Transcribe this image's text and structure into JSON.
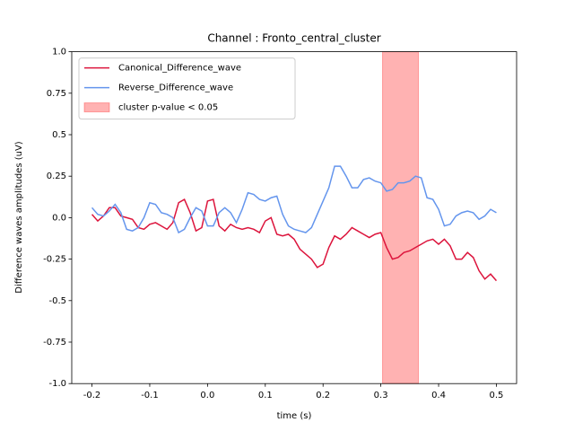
{
  "chart_data": {
    "type": "line",
    "title": "Channel : Fronto_central_cluster",
    "x_label": "time (s)",
    "y_label": "Difference waves amplitudes (uV)",
    "x": [
      -0.2,
      -0.19,
      -0.18,
      -0.17,
      -0.16,
      -0.15,
      -0.14,
      -0.13,
      -0.12,
      -0.11,
      -0.1,
      -0.09,
      -0.08,
      -0.07,
      -0.06,
      -0.05,
      -0.04,
      -0.03,
      -0.02,
      -0.01,
      0.0,
      0.01,
      0.02,
      0.03,
      0.04,
      0.05,
      0.06,
      0.07,
      0.08,
      0.09,
      0.1,
      0.11,
      0.12,
      0.13,
      0.14,
      0.15,
      0.16,
      0.17,
      0.18,
      0.19,
      0.2,
      0.21,
      0.22,
      0.23,
      0.24,
      0.25,
      0.26,
      0.27,
      0.28,
      0.29,
      0.3,
      0.31,
      0.32,
      0.33,
      0.34,
      0.35,
      0.36,
      0.37,
      0.38,
      0.39,
      0.4,
      0.41,
      0.42,
      0.43,
      0.44,
      0.45,
      0.46,
      0.47,
      0.48,
      0.49,
      0.5
    ],
    "series": [
      {
        "name": "Canonical_Difference_wave",
        "color": "#dc143c",
        "values": [
          0.02,
          -0.02,
          0.01,
          0.06,
          0.06,
          0.01,
          0.0,
          -0.01,
          -0.06,
          -0.07,
          -0.04,
          -0.03,
          -0.05,
          -0.07,
          -0.03,
          0.09,
          0.11,
          0.03,
          -0.08,
          -0.06,
          0.1,
          0.11,
          -0.05,
          -0.08,
          -0.04,
          -0.06,
          -0.07,
          -0.06,
          -0.07,
          -0.09,
          -0.02,
          0.0,
          -0.1,
          -0.11,
          -0.1,
          -0.13,
          -0.19,
          -0.22,
          -0.25,
          -0.3,
          -0.28,
          -0.18,
          -0.11,
          -0.13,
          -0.1,
          -0.06,
          -0.08,
          -0.1,
          -0.12,
          -0.1,
          -0.09,
          -0.18,
          -0.25,
          -0.24,
          -0.21,
          -0.2,
          -0.18,
          -0.16,
          -0.14,
          -0.13,
          -0.16,
          -0.13,
          -0.17,
          -0.25,
          -0.25,
          -0.21,
          -0.24,
          -0.32,
          -0.37,
          -0.34,
          -0.38
        ]
      },
      {
        "name": "Reverse_Difference_wave",
        "color": "#6495ed",
        "values": [
          0.06,
          0.02,
          0.01,
          0.04,
          0.08,
          0.03,
          -0.07,
          -0.08,
          -0.06,
          0.0,
          0.09,
          0.08,
          0.03,
          0.02,
          0.0,
          -0.09,
          -0.07,
          0.0,
          0.06,
          0.04,
          -0.05,
          -0.05,
          0.03,
          0.06,
          0.03,
          -0.03,
          0.05,
          0.15,
          0.14,
          0.11,
          0.1,
          0.12,
          0.13,
          0.02,
          -0.05,
          -0.07,
          -0.08,
          -0.09,
          -0.06,
          0.02,
          0.1,
          0.18,
          0.31,
          0.31,
          0.25,
          0.18,
          0.18,
          0.23,
          0.24,
          0.22,
          0.21,
          0.16,
          0.17,
          0.21,
          0.21,
          0.22,
          0.25,
          0.24,
          0.12,
          0.11,
          0.05,
          -0.05,
          -0.04,
          0.01,
          0.03,
          0.04,
          0.03,
          -0.01,
          0.01,
          0.05,
          0.03
        ]
      }
    ],
    "shaded_region": {
      "x": [
        0.303,
        0.365
      ],
      "label": "cluster p-value < 0.05",
      "color": "#ff0000"
    },
    "xlim": [
      -0.235,
      0.535
    ],
    "ylim": [
      -1.0,
      1.0
    ],
    "xticks": [
      -0.2,
      -0.1,
      {
        "value": 0,
        "label": "0.0"
      },
      0.1,
      0.2,
      0.3,
      0.4,
      0.5
    ],
    "yticks": [
      {
        "value": -1,
        "label": "-1.0"
      },
      -0.75,
      -0.5,
      -0.25,
      {
        "value": 0,
        "label": "0.0"
      },
      0.25,
      0.5,
      0.75,
      {
        "value": 1,
        "label": "1.0"
      }
    ],
    "legend": "upper left"
  }
}
